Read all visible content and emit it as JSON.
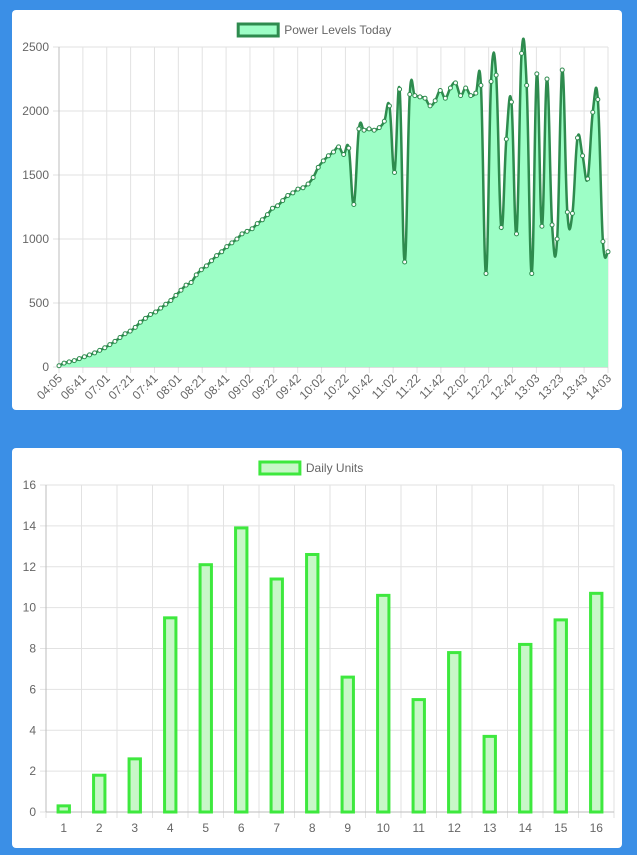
{
  "chart_data": [
    {
      "type": "area",
      "legend": [
        "Power Levels Today"
      ],
      "legend_position": "top",
      "grid": true,
      "ylim": [
        0,
        2500
      ],
      "yticks": [
        "0",
        "500",
        "1000",
        "1500",
        "2000",
        "2500"
      ],
      "x_tick_labels": [
        "04:05",
        "06:41",
        "07:01",
        "07:21",
        "07:41",
        "08:01",
        "08:21",
        "08:41",
        "09:02",
        "09:22",
        "09:42",
        "10:02",
        "10:22",
        "10:42",
        "11:02",
        "11:22",
        "11:42",
        "12:02",
        "12:22",
        "12:42",
        "13:03",
        "13:23",
        "13:43",
        "14:03"
      ],
      "series": [
        {
          "name": "Power Levels Today",
          "color": "#2e8b4e",
          "fill": "#9dfec6",
          "values": [
            10,
            30,
            40,
            50,
            65,
            80,
            95,
            110,
            130,
            150,
            175,
            200,
            230,
            260,
            280,
            310,
            350,
            380,
            410,
            430,
            460,
            490,
            520,
            560,
            600,
            640,
            660,
            720,
            760,
            790,
            830,
            870,
            900,
            940,
            970,
            1000,
            1040,
            1060,
            1080,
            1120,
            1150,
            1190,
            1240,
            1260,
            1300,
            1340,
            1360,
            1390,
            1400,
            1430,
            1480,
            1560,
            1610,
            1650,
            1680,
            1720,
            1660,
            1710,
            1270,
            1860,
            1850,
            1860,
            1850,
            1870,
            1920,
            2040,
            1520,
            2170,
            820,
            2130,
            2120,
            2110,
            2100,
            2040,
            2080,
            2160,
            2100,
            2180,
            2220,
            2120,
            2180,
            2120,
            2140,
            2200,
            730,
            2230,
            2280,
            1090,
            1780,
            2070,
            1040,
            2450,
            2200,
            730,
            2290,
            1100,
            2250,
            1110,
            1000,
            2320,
            1210,
            1200,
            1790,
            1650,
            1470,
            1990,
            2090,
            980,
            900
          ]
        }
      ]
    },
    {
      "type": "bar",
      "legend": [
        "Daily Units"
      ],
      "legend_position": "top",
      "grid": true,
      "ylim": [
        0,
        16
      ],
      "yticks": [
        "0",
        "2",
        "4",
        "6",
        "8",
        "10",
        "12",
        "14",
        "16"
      ],
      "categories": [
        "1",
        "2",
        "3",
        "4",
        "5",
        "6",
        "7",
        "8",
        "9",
        "10",
        "11",
        "12",
        "13",
        "14",
        "15",
        "16"
      ],
      "series": [
        {
          "name": "Daily Units",
          "border": "#3ee83e",
          "fill": "#c8f7c8",
          "values": [
            0.3,
            1.8,
            2.6,
            9.5,
            12.1,
            13.9,
            11.4,
            12.6,
            6.6,
            10.6,
            5.5,
            7.8,
            3.7,
            8.2,
            9.4,
            10.7
          ]
        }
      ]
    }
  ]
}
